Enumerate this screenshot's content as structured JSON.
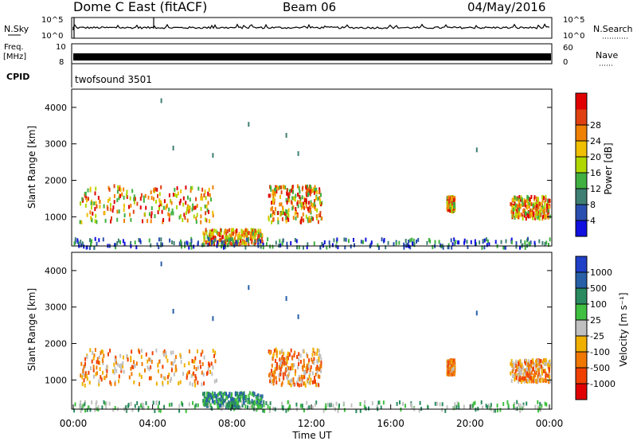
{
  "header": {
    "station": "Dome C East (fitACF)",
    "beam": "Beam 06",
    "date": "04/May/2016"
  },
  "panels": {
    "nsky": {
      "left_label": "N.Sky",
      "left_top_tick": "10^5",
      "left_bottom_tick": "10^0",
      "right_label": "N.Search",
      "right_top_tick": "10^5",
      "right_bottom_tick": "10^0"
    },
    "freq": {
      "left_label_1": "Freq.",
      "left_label_2": "[MHz]",
      "left_top_tick": "10",
      "left_bottom_tick": "8",
      "right_label": "Nave",
      "right_top_tick": "60",
      "right_bottom_tick": "0"
    },
    "cpid": {
      "label": "CPID",
      "value": "twofsound 3501"
    }
  },
  "chart_data": [
    {
      "type": "heatmap",
      "name": "power",
      "ylabel": "Slant Range [km]",
      "yticks": [
        "1000",
        "2000",
        "3000",
        "4000"
      ],
      "ylim": [
        200,
        4500
      ],
      "xlim_hours": [
        0,
        24
      ],
      "colorbar": {
        "label": "Power [dB]",
        "ticks": [
          "4",
          "8",
          "12",
          "16",
          "20",
          "24",
          "28"
        ],
        "colors": [
          "#1010e0",
          "#2a4fb0",
          "#3f7f73",
          "#40b040",
          "#b0d800",
          "#f0c000",
          "#f08000",
          "#e04010",
          "#e00000"
        ]
      },
      "echo_regions": [
        {
          "t0": 0.3,
          "t1": 7.2,
          "r0": 900,
          "r1": 1900
        },
        {
          "t0": 6.5,
          "t1": 9.5,
          "r0": 300,
          "r1": 700
        },
        {
          "t0": 9.8,
          "t1": 12.5,
          "r0": 900,
          "r1": 1900
        },
        {
          "t0": 18.8,
          "t1": 19.2,
          "r0": 1200,
          "r1": 1600
        },
        {
          "t0": 22.0,
          "t1": 24.0,
          "r0": 1000,
          "r1": 1600
        },
        {
          "t0": 0.0,
          "t1": 24.0,
          "r0": 200,
          "r1": 450
        }
      ]
    },
    {
      "type": "heatmap",
      "name": "velocity",
      "ylabel": "Slant Range [km]",
      "yticks": [
        "1000",
        "2000",
        "3000",
        "4000"
      ],
      "ylim": [
        200,
        4500
      ],
      "xlim_hours": [
        0,
        24
      ],
      "xlabel": "Time UT",
      "xticks": [
        "00:00",
        "04:00",
        "08:00",
        "12:00",
        "16:00",
        "20:00",
        "00:00"
      ],
      "colorbar": {
        "label": "Velocity [m s⁻¹]",
        "ticks": [
          "-1000",
          "-500",
          "-100",
          "-25",
          "25",
          "100",
          "500",
          "1000"
        ],
        "colors": [
          "#e00000",
          "#f04000",
          "#f07800",
          "#f0b000",
          "#c0c0c0",
          "#40c040",
          "#2a8a60",
          "#2860a8",
          "#2040c8"
        ]
      },
      "echo_regions": [
        {
          "t0": 0.3,
          "t1": 7.2,
          "r0": 900,
          "r1": 1900
        },
        {
          "t0": 6.5,
          "t1": 9.5,
          "r0": 300,
          "r1": 700
        },
        {
          "t0": 9.8,
          "t1": 12.5,
          "r0": 900,
          "r1": 1900
        },
        {
          "t0": 18.8,
          "t1": 19.2,
          "r0": 1200,
          "r1": 1600
        },
        {
          "t0": 22.0,
          "t1": 24.0,
          "r0": 1000,
          "r1": 1600
        },
        {
          "t0": 0.0,
          "t1": 24.0,
          "r0": 200,
          "r1": 450
        }
      ]
    }
  ]
}
